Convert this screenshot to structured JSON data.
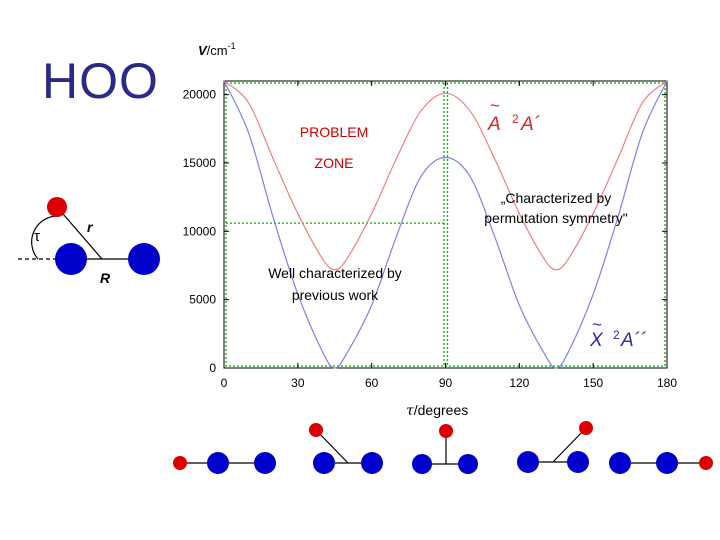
{
  "slide": {
    "title": "HOO"
  },
  "colors": {
    "atom_o": "#0000cc",
    "atom_h": "#dd0000",
    "curve_ground": "#8080e6",
    "curve_excited": "#f08080",
    "grid": "#00b000",
    "problem_zone_text": "#cc0000",
    "excited_label": "#dd2222",
    "ground_label": "#2a2aaa",
    "title_color": "#2a2a8a"
  },
  "geometry_diagram": {
    "label_tau": "τ",
    "label_r": "r",
    "label_R": "R"
  },
  "chart_data": {
    "type": "line",
    "ylabel_main": "V",
    "ylabel_unit": "/cm",
    "ylabel_exp": "-1",
    "xlabel_var": "τ",
    "xlabel_rest": "/degrees",
    "xlim": [
      0,
      180
    ],
    "ylim": [
      0,
      21000
    ],
    "xticks": [
      "0",
      "30",
      "60",
      "90",
      "120",
      "150",
      "180"
    ],
    "yticks": [
      "0",
      "5000",
      "10000",
      "15000",
      "20000"
    ],
    "grid": false,
    "series": [
      {
        "key": "excited",
        "x": [
          0,
          10,
          20,
          30,
          40,
          45,
          50,
          60,
          70,
          80,
          90,
          100,
          110,
          120,
          130,
          135,
          140,
          150,
          160,
          170,
          180
        ],
        "y": [
          21000,
          19400,
          15300,
          11300,
          8000,
          7200,
          8000,
          11300,
          15300,
          18800,
          20100,
          18800,
          15300,
          11300,
          8000,
          7200,
          8000,
          11300,
          15300,
          19400,
          21000
        ]
      },
      {
        "key": "ground",
        "x": [
          0,
          10,
          20,
          30,
          40,
          45,
          50,
          60,
          70,
          80,
          90,
          100,
          110,
          120,
          130,
          135,
          140,
          150,
          160,
          170,
          180
        ],
        "y": [
          21000,
          17200,
          11000,
          5400,
          1200,
          0,
          1100,
          4600,
          9600,
          14000,
          15400,
          14000,
          9600,
          4600,
          1100,
          0,
          1200,
          5400,
          11000,
          17200,
          21000
        ]
      }
    ],
    "series_labels": {
      "excited": {
        "letter": "A",
        "multiplicity": "2",
        "symmetry": "A´"
      },
      "ground": {
        "letter": "X",
        "multiplicity": "2",
        "symmetry": "A´´"
      }
    },
    "annotations": {
      "problem_line1": "PROBLEM",
      "problem_line2": "ZONE",
      "perm_line1": "„Characterized by",
      "perm_line2": "permutation symmetry\"",
      "prev_line1": "Well characterized by",
      "prev_line2": "previous work"
    },
    "dotted_region": {
      "x_split": 90,
      "y_split": 10600
    }
  }
}
